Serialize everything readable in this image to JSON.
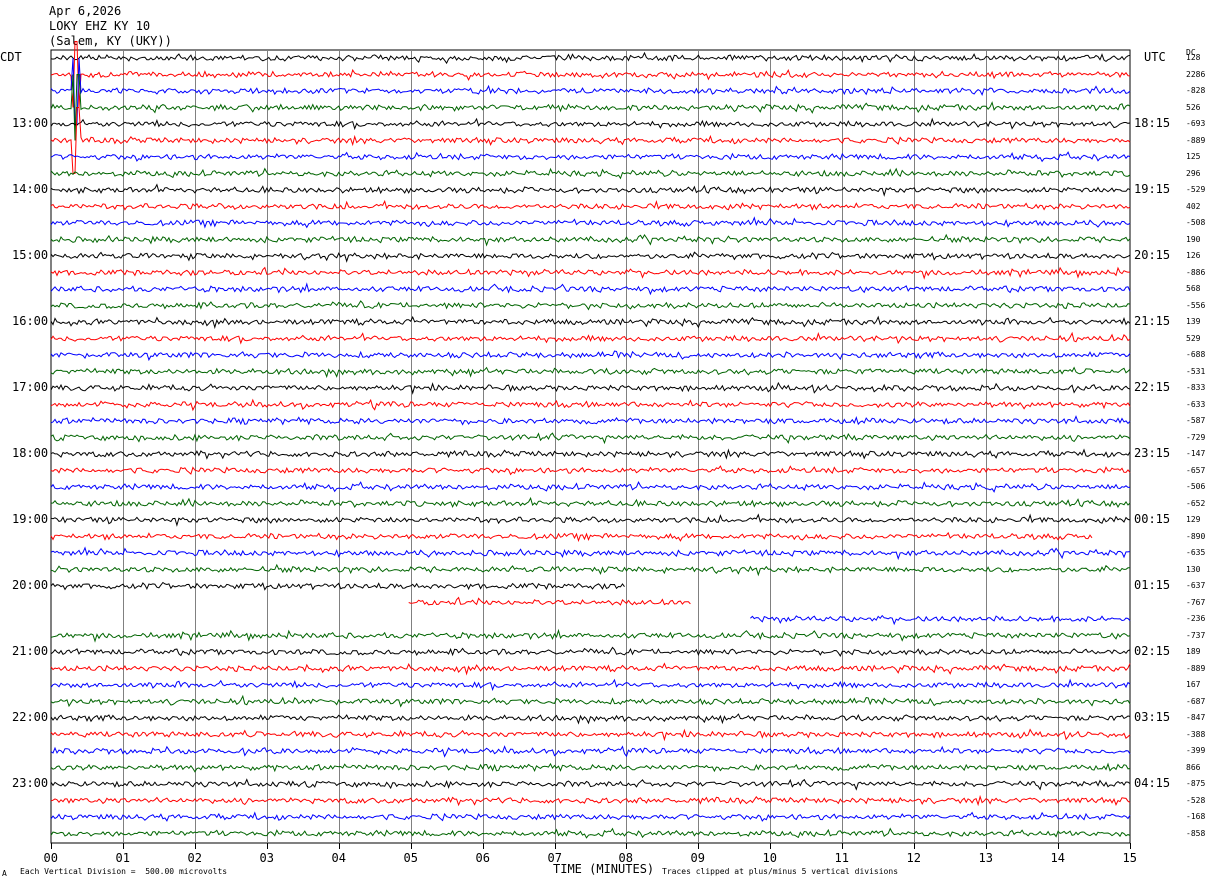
{
  "header": {
    "date": "Apr 6,2026",
    "station": "LOKY EHZ KY 10",
    "location": "(Salem, KY (UKY))"
  },
  "left_tz": "CDT",
  "right_tz": "UTC",
  "dc_label": "DC",
  "footer": {
    "scale": "Each Vertical Division =  500.00 microvolts",
    "xlabel": "TIME (MINUTES)",
    "clip_note": "Traces clipped at plus/minus 5 vertical divisions",
    "corner_mark": "A"
  },
  "colors": {
    "trace_cycle": [
      "#000000",
      "#ff0000",
      "#0000ff",
      "#006400"
    ],
    "grid": "#808080"
  },
  "chart_data": {
    "type": "line",
    "title": "LOKY EHZ KY 10",
    "xlabel": "TIME (MINUTES)",
    "x_range": [
      0,
      15
    ],
    "x_ticks": [
      "00",
      "01",
      "02",
      "03",
      "04",
      "05",
      "06",
      "07",
      "08",
      "09",
      "10",
      "11",
      "12",
      "13",
      "14",
      "15"
    ],
    "row_count": 48,
    "rows_per_hour": 4,
    "left_hour_labels": [
      "13:00",
      "14:00",
      "15:00",
      "16:00",
      "17:00",
      "18:00",
      "19:00",
      "20:00",
      "21:00",
      "22:00",
      "23:00"
    ],
    "right_hour_labels": [
      "18:15",
      "19:15",
      "20:15",
      "21:15",
      "22:15",
      "23:15",
      "00:15",
      "01:15",
      "02:15",
      "03:15",
      "04:15"
    ],
    "dc_offsets": [
      "128",
      "2286",
      "-828",
      "526",
      "-693",
      "-889",
      "125",
      "296",
      "-529",
      "402",
      "-508",
      "190",
      "126",
      "-886",
      "568",
      "-556",
      "139",
      "529",
      "-688",
      "-531",
      "-833",
      "-633",
      "-587",
      "-729",
      "-147",
      "-657",
      "-506",
      "-652",
      "129",
      "-890",
      "-635",
      "130",
      "-637",
      "-767",
      "-236",
      "-737",
      "189",
      "-889",
      "167",
      "-687",
      "-847",
      "-388",
      "-399",
      "866",
      "-875",
      "-528",
      "-168",
      "-858"
    ],
    "gaps": [
      {
        "row": 32,
        "from_min": 8.0,
        "to_min": 15
      },
      {
        "row": 33,
        "from_min": 0,
        "to_min": 4.95
      },
      {
        "row": 33,
        "from_min": 8.9,
        "to_min": 15
      },
      {
        "row": 34,
        "from_min": 0,
        "to_min": 9.7
      },
      {
        "row": 34,
        "from_min": 0,
        "to_min": 0
      },
      {
        "row": 29,
        "from_min": 14.5,
        "to_min": 15
      }
    ],
    "events": [
      {
        "row": 1,
        "minute": 0.35,
        "amplitude": "large",
        "note": "clipped"
      },
      {
        "row": 2,
        "minute": 0.35,
        "amplitude": "large"
      },
      {
        "row": 3,
        "minute": 0.35,
        "amplitude": "large"
      },
      {
        "row": 5,
        "minute": 0.35,
        "amplitude": "large"
      }
    ]
  }
}
